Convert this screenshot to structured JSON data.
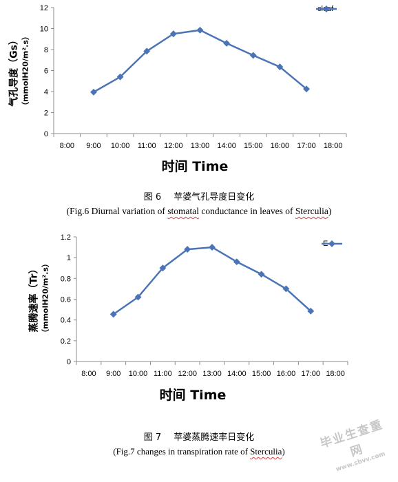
{
  "chart_data": [
    {
      "type": "line",
      "categories": [
        "8:00",
        "9:00",
        "10:00",
        "11:00",
        "12:00",
        "13:00",
        "14:00",
        "15:00",
        "16:00",
        "17:00",
        "18:00"
      ],
      "series": [
        {
          "name": "cleaf",
          "x": [
            "9:00",
            "10:00",
            "11:00",
            "12:00",
            "13:00",
            "14:00",
            "15:00",
            "16:00",
            "17:00"
          ],
          "values": [
            3.95,
            5.4,
            7.85,
            9.5,
            9.85,
            8.6,
            7.45,
            6.35,
            4.25
          ]
        }
      ],
      "title": "",
      "xlabel": "时间 Time",
      "ylabel": "气孔导度（Gs）",
      "ylabel_unit": "（mmolH20/m².s）",
      "ylim": [
        0,
        12
      ],
      "yticks": [
        "0",
        "2",
        "4",
        "6",
        "8",
        "10",
        "12"
      ],
      "grid": false,
      "legend": "top-right",
      "color": "#4a74b5"
    },
    {
      "type": "line",
      "categories": [
        "8:00",
        "9:00",
        "10:00",
        "11:00",
        "12:00",
        "13:00",
        "14:00",
        "15:00",
        "16:00",
        "17:00",
        "18:00"
      ],
      "series": [
        {
          "name": "E",
          "x": [
            "9:00",
            "10:00",
            "11:00",
            "12:00",
            "13:00",
            "14:00",
            "15:00",
            "16:00",
            "17:00"
          ],
          "values": [
            0.455,
            0.62,
            0.9,
            1.08,
            1.1,
            0.96,
            0.84,
            0.7,
            0.485
          ]
        }
      ],
      "title": "",
      "xlabel": "时间 Time",
      "ylabel": "蒸腾速率（Tr）",
      "ylabel_unit": "（mmolH20/m².s）",
      "ylim": [
        0,
        1.2
      ],
      "yticks": [
        "0",
        "0.2",
        "0.4",
        "0.6",
        "0.8",
        "1",
        "1.2"
      ],
      "grid": false,
      "legend": "top-right",
      "color": "#4a74b5"
    }
  ],
  "captions": [
    {
      "fig": "图 6",
      "cn": "苹婆气孔导度日变化",
      "en_before": "(Fig.6 Diurnal variation of ",
      "en_wavy1": "stomatal",
      "en_mid": " conductance in leaves of ",
      "en_wavy2": "Sterculia",
      "en_after": ")"
    },
    {
      "fig": "图 7",
      "cn": "苹婆蒸腾速率日变化",
      "en_before": "(Fig.7 changes in transpiration rate of ",
      "en_wavy2": "Sterculia",
      "en_after": ")"
    }
  ],
  "watermark": {
    "line1": "毕业生查重网",
    "line2": "www.sbvv.com"
  }
}
